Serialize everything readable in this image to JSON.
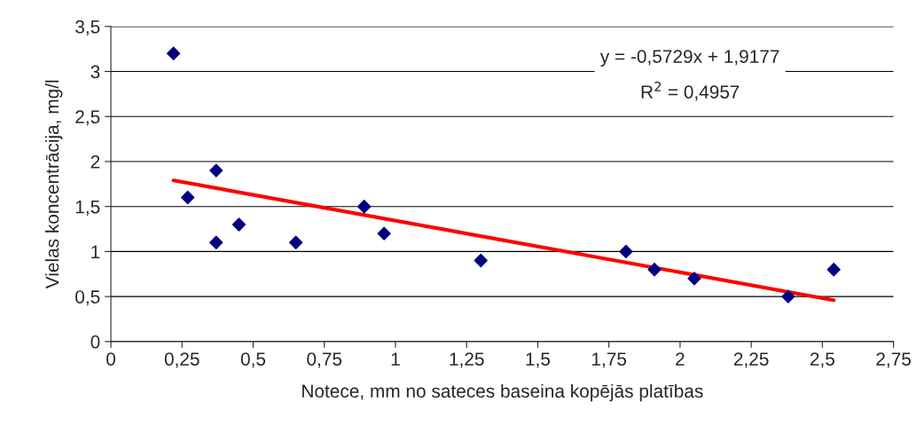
{
  "chart_data": {
    "type": "scatter",
    "xlabel": "Notece, mm no sateces baseina kopējās platības",
    "ylabel": "Vielas koncentrācija, mg/l",
    "x": [
      0.22,
      0.27,
      0.37,
      0.37,
      0.45,
      0.65,
      0.89,
      0.96,
      1.3,
      1.81,
      1.91,
      2.05,
      2.38,
      2.54
    ],
    "series": [
      {
        "color": "#000080",
        "marker": "diamond",
        "values": [
          3.2,
          1.6,
          1.9,
          1.1,
          1.3,
          1.1,
          1.5,
          1.2,
          0.9,
          1.0,
          0.8,
          0.7,
          0.5,
          0.8
        ]
      },
      {
        "type": "line",
        "color": "#ff0000",
        "line_style": "solid",
        "marker": "none",
        "x": [
          0.22,
          2.54
        ],
        "values": [
          1.79,
          0.46
        ]
      }
    ],
    "xlim": [
      0,
      2.75
    ],
    "ylim": [
      0,
      3.5
    ],
    "xticks": [
      0,
      {
        "value": 0.25,
        "label": "0,25"
      },
      {
        "value": 0.5,
        "label": "0,5"
      },
      {
        "value": 0.75,
        "label": "0,75"
      },
      1,
      {
        "value": 1.25,
        "label": "1,25"
      },
      {
        "value": 1.5,
        "label": "1,5"
      },
      {
        "value": 1.75,
        "label": "1,75"
      },
      2,
      {
        "value": 2.25,
        "label": "2,25"
      },
      {
        "value": 2.5,
        "label": "2,5"
      },
      {
        "value": 2.75,
        "label": "2,75"
      }
    ],
    "yticks": [
      0,
      {
        "value": 0.5,
        "label": "0,5"
      },
      1,
      {
        "value": 1.5,
        "label": "1,5"
      },
      2,
      {
        "value": 2.5,
        "label": "2,5"
      },
      3,
      {
        "value": 3.5,
        "label": "3,5"
      }
    ],
    "grid": "y",
    "legend": false,
    "annotations": [
      "y = -0,5729x + 1,9177",
      "R$^{2}$ = 0,4957"
    ]
  }
}
